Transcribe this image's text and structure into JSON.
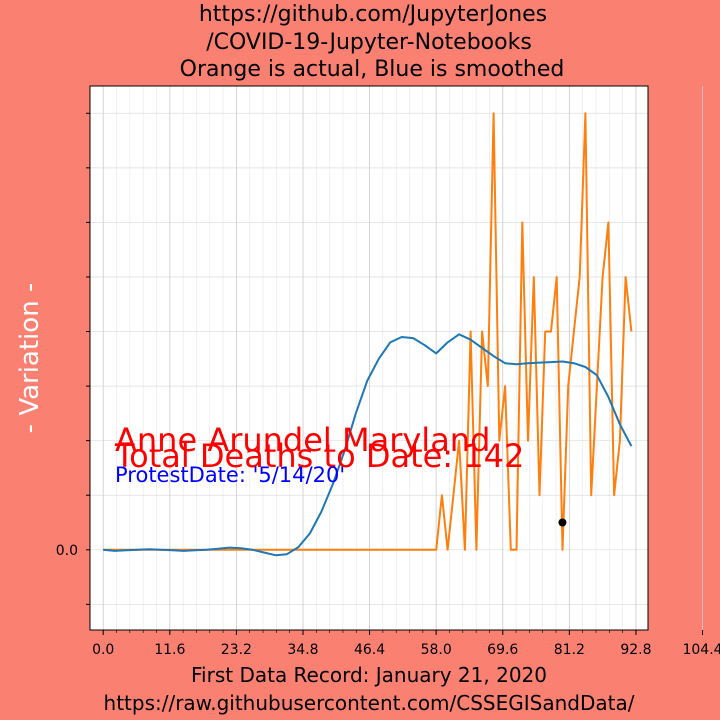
{
  "chart_data": {
    "type": "line",
    "title_lines": [
      "https://github.com/JupyterJones",
      "/COVID-19-Jupyter-Notebooks",
      "Orange is actual, Blue is smoothed"
    ],
    "xlabel_lines": [
      "First Data Record: January 21, 2020",
      "https://raw.githubusercontent.com/CSSEGISandData/"
    ],
    "ylabel": "- Variation -",
    "xlim": [
      -2.3,
      94.9
    ],
    "ylim": [
      -1.47,
      8.5
    ],
    "x_ticks": [
      0,
      11.6,
      23.2,
      34.8,
      46.4,
      58.0,
      69.6,
      81.2,
      92.8,
      104.4
    ],
    "x_tick_labels": [
      "0.0",
      "11.6",
      "23.2",
      "34.8",
      "46.4",
      "58.0",
      "69.6",
      "81.2",
      "92.8",
      "104.4"
    ],
    "y_ticks": [
      0
    ],
    "y_tick_labels": [
      "0.0"
    ],
    "grid": true,
    "annotations": {
      "location": "Anne Arundel Maryland",
      "total_deaths": "Total Deaths to Date: 142",
      "protest_date": "ProtestDate:  '5/14/20'"
    },
    "marker_point": {
      "x": 80,
      "y": 0.5
    },
    "series": [
      {
        "color": "#ff7f0e",
        "role": "actual",
        "x": [
          0,
          1,
          2,
          3,
          4,
          5,
          6,
          7,
          8,
          9,
          10,
          11,
          12,
          13,
          14,
          15,
          16,
          17,
          18,
          19,
          20,
          21,
          22,
          23,
          24,
          25,
          26,
          27,
          28,
          29,
          30,
          31,
          32,
          33,
          34,
          35,
          36,
          37,
          38,
          39,
          40,
          41,
          42,
          43,
          44,
          45,
          46,
          47,
          48,
          49,
          50,
          51,
          52,
          53,
          54,
          55,
          56,
          57,
          58,
          59,
          60,
          61,
          62,
          63,
          64,
          65,
          66,
          67,
          68,
          69,
          70,
          71,
          72,
          73,
          74,
          75,
          76,
          77,
          78,
          79,
          80,
          81,
          82,
          83,
          84,
          85,
          86,
          87,
          88,
          89,
          90,
          91,
          92
        ],
        "values": [
          0,
          0,
          0,
          0,
          0,
          0,
          0,
          0,
          0,
          0,
          0,
          0,
          0,
          0,
          0,
          0,
          0,
          0,
          0,
          0,
          0,
          0,
          0,
          0,
          0,
          0,
          0,
          0,
          0,
          0,
          0,
          0,
          0,
          0,
          0,
          0,
          0,
          0,
          0,
          0,
          0,
          0,
          0,
          0,
          0,
          0,
          0,
          0,
          0,
          0,
          0,
          0,
          0,
          0,
          0,
          0,
          0,
          0,
          0,
          1,
          0,
          1,
          2,
          0,
          4,
          0,
          4,
          3,
          8,
          2,
          3,
          0,
          0,
          6,
          2,
          5,
          1,
          4,
          4,
          5,
          0,
          3,
          4,
          5,
          8,
          1,
          3,
          5,
          6,
          1,
          2,
          5,
          4
        ]
      },
      {
        "color": "#1f77b4",
        "role": "smoothed",
        "x": [
          0,
          2,
          4,
          6,
          8,
          10,
          12,
          14,
          16,
          18,
          20,
          22,
          24,
          26,
          28,
          30,
          32,
          34,
          36,
          38,
          40,
          42,
          44,
          46,
          48,
          50,
          52,
          54,
          56,
          58,
          60,
          62,
          64,
          66,
          68,
          70,
          72,
          74,
          76,
          78,
          80,
          82,
          84,
          86,
          88,
          90,
          92
        ],
        "values": [
          0,
          -0.02,
          -0.01,
          0,
          0.01,
          0,
          -0.01,
          -0.02,
          -0.01,
          0,
          0.02,
          0.04,
          0.03,
          0,
          -0.05,
          -0.1,
          -0.08,
          0.05,
          0.3,
          0.7,
          1.2,
          1.8,
          2.5,
          3.1,
          3.5,
          3.8,
          3.9,
          3.88,
          3.75,
          3.6,
          3.8,
          3.95,
          3.85,
          3.7,
          3.55,
          3.42,
          3.4,
          3.42,
          3.43,
          3.44,
          3.45,
          3.42,
          3.35,
          3.2,
          2.8,
          2.3,
          1.9
        ]
      }
    ]
  }
}
